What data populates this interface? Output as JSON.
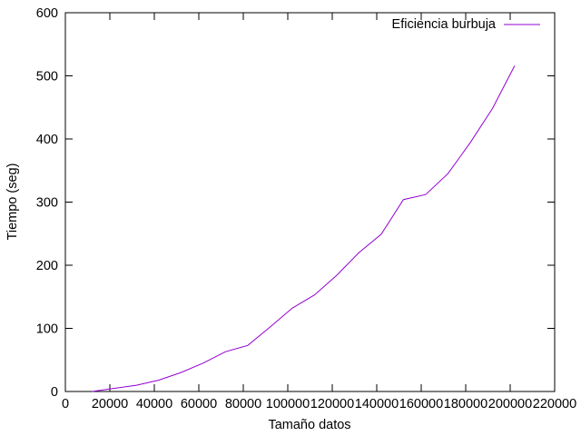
{
  "chart_data": {
    "type": "line",
    "title": "",
    "xlabel": "Tamaño datos",
    "ylabel": "Tiempo (seg)",
    "xlim": [
      0,
      220000
    ],
    "ylim": [
      0,
      600
    ],
    "xticks": [
      0,
      20000,
      40000,
      60000,
      80000,
      100000,
      120000,
      140000,
      160000,
      180000,
      200000,
      220000
    ],
    "xtick_labels": [
      "0",
      "20000",
      "40000",
      "60000",
      "80000",
      "100000",
      "120000",
      "140000",
      "160000",
      "180000",
      "200000",
      "220000"
    ],
    "yticks": [
      0,
      100,
      200,
      300,
      400,
      500,
      600
    ],
    "ytick_labels": [
      "0",
      "100",
      "200",
      "300",
      "400",
      "500",
      "600"
    ],
    "grid": false,
    "legend_position": "top-right",
    "series": [
      {
        "name": "Eficiencia burbuja",
        "color": "#9400d3",
        "x": [
          12000,
          22000,
          32000,
          42000,
          52000,
          62000,
          72000,
          82000,
          92000,
          102000,
          112000,
          122000,
          132000,
          142000,
          152000,
          162000,
          172000,
          182000,
          192000,
          202000
        ],
        "y": [
          0,
          5,
          10,
          18,
          30,
          45,
          63,
          73,
          102,
          132,
          153,
          184,
          220,
          249,
          304,
          312,
          345,
          394,
          448,
          516
        ]
      }
    ]
  }
}
